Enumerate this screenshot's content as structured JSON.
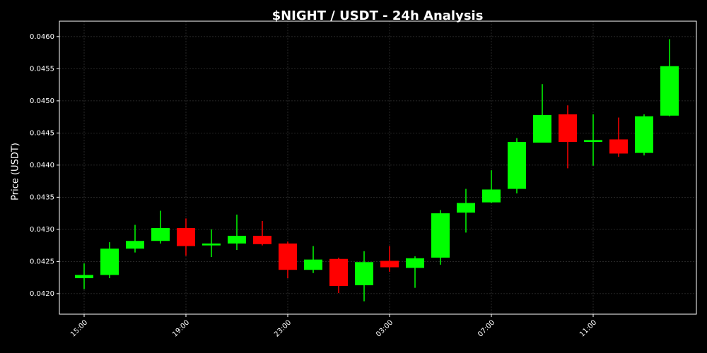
{
  "chart_data": {
    "type": "candlestick",
    "title": "$NIGHT / USDT - 24h Analysis",
    "y_label": "Price (USDT)",
    "categories": [
      "15:00",
      null,
      null,
      null,
      "19:00",
      null,
      null,
      null,
      "23:00",
      null,
      null,
      null,
      "03:00",
      null,
      null,
      null,
      "07:00",
      null,
      null,
      null,
      "11:00",
      null,
      null,
      null
    ],
    "open": [
      0.04224,
      0.04229,
      0.0427,
      0.04282,
      0.04302,
      0.04275,
      0.04278,
      0.0429,
      0.04278,
      0.04237,
      0.04254,
      0.04213,
      0.04251,
      0.0424,
      0.04256,
      0.04326,
      0.04342,
      0.04363,
      0.04435,
      0.04479,
      0.04436,
      0.0444,
      0.04419,
      0.04477
    ],
    "high": [
      0.04247,
      0.0428,
      0.04307,
      0.04329,
      0.04317,
      0.043,
      0.04323,
      0.04313,
      0.04281,
      0.04274,
      0.04256,
      0.04266,
      0.04274,
      0.04258,
      0.0433,
      0.04363,
      0.04392,
      0.04442,
      0.04526,
      0.04493,
      0.04479,
      0.04474,
      0.04479,
      0.04596
    ],
    "low": [
      0.04207,
      0.04224,
      0.04264,
      0.04278,
      0.04259,
      0.04257,
      0.04268,
      0.04275,
      0.04224,
      0.04232,
      0.04201,
      0.04188,
      0.04234,
      0.04209,
      0.04245,
      0.04295,
      0.04341,
      0.04356,
      0.04435,
      0.04395,
      0.04399,
      0.04413,
      0.04415,
      0.04476
    ],
    "close": [
      0.04229,
      0.0427,
      0.04282,
      0.04302,
      0.04274,
      0.04278,
      0.0429,
      0.04277,
      0.04237,
      0.04253,
      0.04212,
      0.04249,
      0.04241,
      0.04255,
      0.04325,
      0.04341,
      0.04362,
      0.04436,
      0.04478,
      0.04436,
      0.04439,
      0.04418,
      0.04476,
      0.04554
    ],
    "up_color": "#00ff00",
    "down_color": "#ff0000",
    "ylim": [
      0.04168,
      0.04624
    ],
    "yticks": [
      {
        "value": 0.042,
        "label": "0.0420"
      },
      {
        "value": 0.0425,
        "label": "0.0425"
      },
      {
        "value": 0.043,
        "label": "0.0430"
      },
      {
        "value": 0.0435,
        "label": "0.0435"
      },
      {
        "value": 0.044,
        "label": "0.0440"
      },
      {
        "value": 0.0445,
        "label": "0.0445"
      },
      {
        "value": 0.045,
        "label": "0.0450"
      },
      {
        "value": 0.0455,
        "label": "0.0455"
      },
      {
        "value": 0.046,
        "label": "0.0460"
      }
    ],
    "grid": true
  }
}
